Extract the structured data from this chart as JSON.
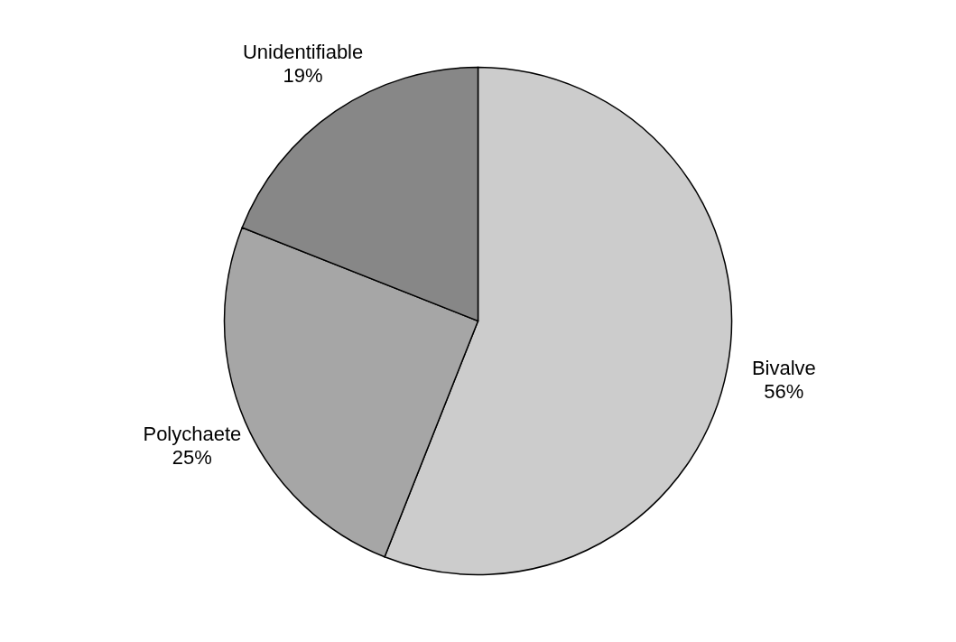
{
  "chart_data": {
    "type": "pie",
    "categories": [
      "Bivalve",
      "Polychaete",
      "Unidentifiable"
    ],
    "values": [
      56,
      25,
      19
    ],
    "colors": [
      "#cccccc",
      "#a6a6a6",
      "#878787"
    ],
    "value_labels": [
      "56%",
      "25%",
      "19%"
    ],
    "legend": false
  }
}
